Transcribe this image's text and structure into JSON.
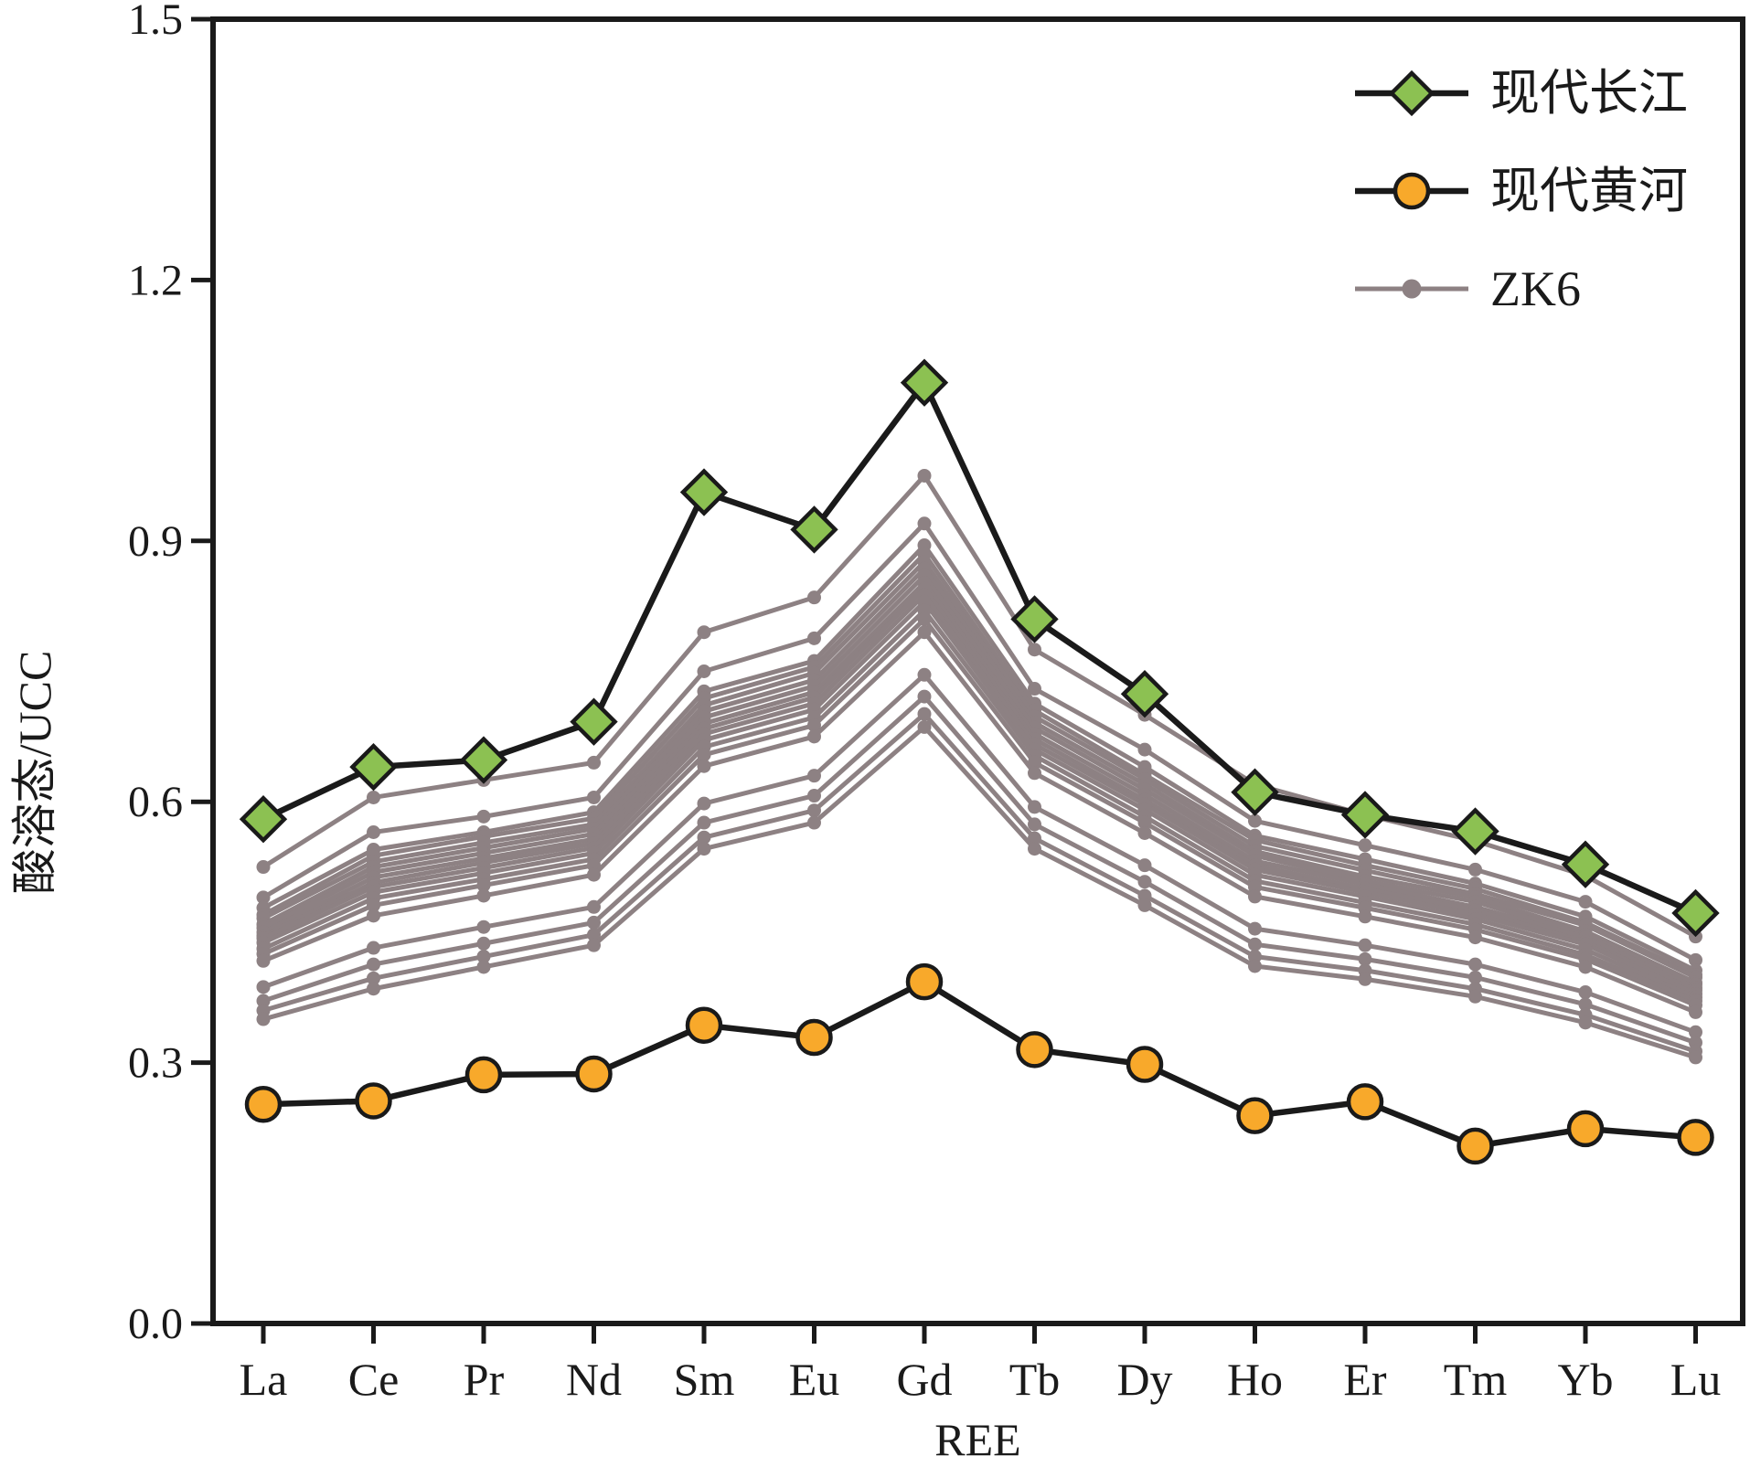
{
  "figure": {
    "background": "#ffffff",
    "axis_color": "#1a1a1a"
  },
  "axes": {
    "y_label": "酸溶态/UCC",
    "x_label": "REE",
    "y_tick_labels": [
      "0.0",
      "0.3",
      "0.6",
      "0.9",
      "1.2",
      "1.5"
    ],
    "y_tick_values": [
      0.0,
      0.3,
      0.6,
      0.9,
      1.2,
      1.5
    ]
  },
  "legend": {
    "items": [
      {
        "label": "现代长江",
        "marker": "diamond"
      },
      {
        "label": "现代黄河",
        "marker": "circle"
      },
      {
        "label": "ZK6",
        "marker": "dot"
      }
    ]
  },
  "chart_data": {
    "type": "line",
    "title": "",
    "xlabel": "REE",
    "ylabel": "酸溶态/UCC",
    "ylim": [
      0.0,
      1.5
    ],
    "grid": false,
    "legend_position": "top-right-inside",
    "categories": [
      "La",
      "Ce",
      "Pr",
      "Nd",
      "Sm",
      "Eu",
      "Gd",
      "Tb",
      "Dy",
      "Ho",
      "Er",
      "Tm",
      "Yb",
      "Lu"
    ],
    "series": [
      {
        "name": "现代长江",
        "marker": "diamond",
        "marker_color": "#8CC152",
        "line_color": "#1a1a1a",
        "values": [
          0.58,
          0.64,
          0.648,
          0.692,
          0.956,
          0.913,
          1.082,
          0.81,
          0.724,
          0.611,
          0.585,
          0.566,
          0.528,
          0.472
        ]
      },
      {
        "name": "现代黄河",
        "marker": "circle",
        "marker_color": "#F8A92B",
        "line_color": "#1a1a1a",
        "values": [
          0.252,
          0.256,
          0.286,
          0.287,
          0.343,
          0.329,
          0.393,
          0.315,
          0.298,
          0.239,
          0.255,
          0.204,
          0.224,
          0.214
        ]
      },
      {
        "name": "ZK6",
        "marker": "dot",
        "marker_color": "#8D8183",
        "line_color": "#8D8183",
        "lines": [
          [
            0.525,
            0.605,
            0.625,
            0.645,
            0.795,
            0.835,
            0.975,
            0.775,
            0.7,
            0.62,
            0.585,
            0.555,
            0.515,
            0.445
          ],
          [
            0.49,
            0.565,
            0.583,
            0.605,
            0.75,
            0.788,
            0.92,
            0.73,
            0.66,
            0.578,
            0.55,
            0.522,
            0.485,
            0.418
          ],
          [
            0.478,
            0.545,
            0.565,
            0.588,
            0.727,
            0.762,
            0.895,
            0.713,
            0.64,
            0.561,
            0.534,
            0.506,
            0.468,
            0.406
          ],
          [
            0.47,
            0.538,
            0.56,
            0.581,
            0.719,
            0.755,
            0.885,
            0.705,
            0.631,
            0.556,
            0.527,
            0.5,
            0.461,
            0.401
          ],
          [
            0.466,
            0.531,
            0.553,
            0.574,
            0.711,
            0.748,
            0.876,
            0.698,
            0.626,
            0.549,
            0.521,
            0.494,
            0.458,
            0.398
          ],
          [
            0.459,
            0.525,
            0.547,
            0.569,
            0.704,
            0.74,
            0.868,
            0.691,
            0.62,
            0.543,
            0.514,
            0.49,
            0.451,
            0.392
          ],
          [
            0.455,
            0.519,
            0.541,
            0.563,
            0.697,
            0.733,
            0.86,
            0.685,
            0.614,
            0.538,
            0.509,
            0.485,
            0.447,
            0.39
          ],
          [
            0.45,
            0.513,
            0.535,
            0.557,
            0.69,
            0.726,
            0.852,
            0.678,
            0.608,
            0.532,
            0.505,
            0.479,
            0.444,
            0.386
          ],
          [
            0.446,
            0.507,
            0.53,
            0.552,
            0.684,
            0.72,
            0.845,
            0.672,
            0.602,
            0.527,
            0.5,
            0.475,
            0.439,
            0.383
          ],
          [
            0.443,
            0.502,
            0.524,
            0.547,
            0.678,
            0.713,
            0.838,
            0.666,
            0.597,
            0.522,
            0.496,
            0.47,
            0.436,
            0.379
          ],
          [
            0.438,
            0.496,
            0.518,
            0.541,
            0.671,
            0.706,
            0.83,
            0.66,
            0.591,
            0.516,
            0.491,
            0.465,
            0.43,
            0.375
          ],
          [
            0.431,
            0.489,
            0.511,
            0.534,
            0.663,
            0.697,
            0.82,
            0.653,
            0.583,
            0.509,
            0.484,
            0.459,
            0.424,
            0.371
          ],
          [
            0.425,
            0.481,
            0.504,
            0.527,
            0.654,
            0.688,
            0.81,
            0.645,
            0.576,
            0.502,
            0.478,
            0.453,
            0.419,
            0.366
          ],
          [
            0.417,
            0.469,
            0.492,
            0.516,
            0.641,
            0.675,
            0.795,
            0.633,
            0.564,
            0.491,
            0.468,
            0.444,
            0.41,
            0.358
          ],
          [
            0.387,
            0.432,
            0.456,
            0.479,
            0.598,
            0.63,
            0.746,
            0.594,
            0.527,
            0.454,
            0.435,
            0.413,
            0.381,
            0.335
          ],
          [
            0.371,
            0.413,
            0.437,
            0.461,
            0.576,
            0.607,
            0.721,
            0.574,
            0.508,
            0.436,
            0.419,
            0.398,
            0.367,
            0.323
          ],
          [
            0.36,
            0.397,
            0.422,
            0.447,
            0.559,
            0.59,
            0.701,
            0.558,
            0.492,
            0.422,
            0.406,
            0.385,
            0.355,
            0.313
          ],
          [
            0.35,
            0.385,
            0.41,
            0.435,
            0.546,
            0.576,
            0.686,
            0.546,
            0.481,
            0.411,
            0.396,
            0.376,
            0.346,
            0.306
          ]
        ]
      }
    ]
  }
}
